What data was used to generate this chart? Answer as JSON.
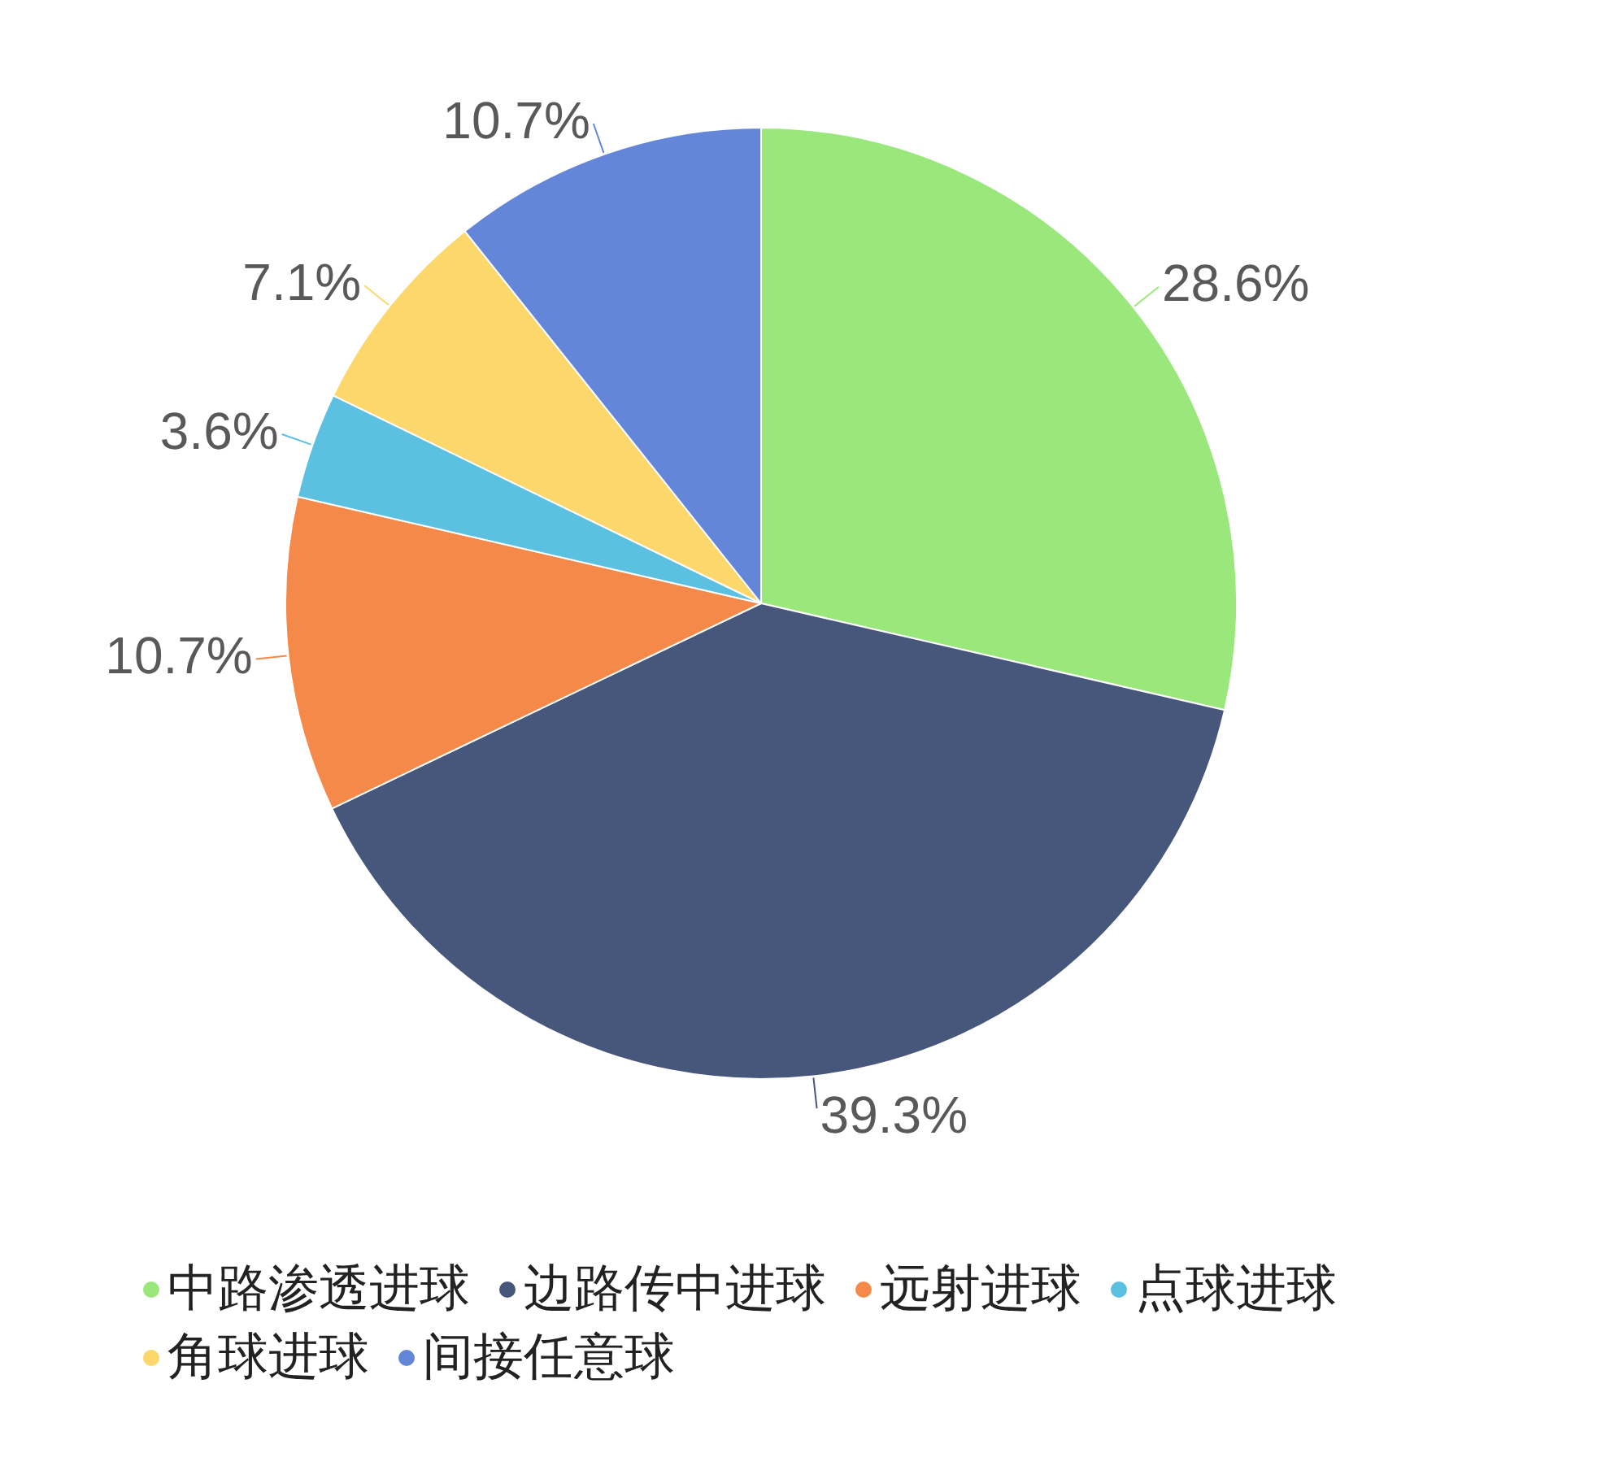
{
  "chart_data": {
    "type": "pie",
    "categories": [
      "中路渗透进球",
      "边路传中进球",
      "远射进球",
      "点球进球",
      "角球进球",
      "间接任意球"
    ],
    "values": [
      28.6,
      39.3,
      10.7,
      3.6,
      7.1,
      10.7
    ],
    "colors": [
      "#9ae77b",
      "#47567b",
      "#f5894a",
      "#5cc0e1",
      "#fcd76c",
      "#6386d8"
    ],
    "value_labels": [
      "28.6%",
      "39.3%",
      "10.7%",
      "3.6%",
      "7.1%",
      "10.7%"
    ],
    "legend": "bottom"
  }
}
